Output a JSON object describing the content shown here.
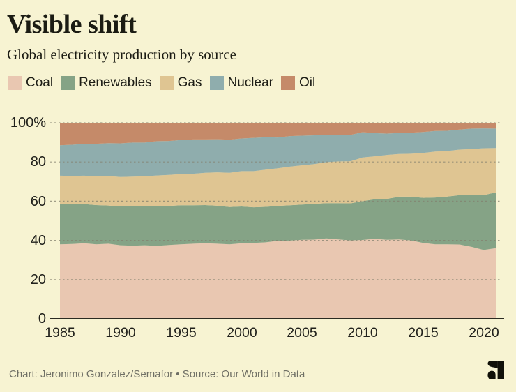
{
  "header": {
    "title": "Visible shift",
    "subtitle": "Global electricity production by source"
  },
  "footer": {
    "credit": "Chart: Jeronimo Gonzalez/Semafor • Source: Our World in Data",
    "logo_icon": "semafor-s-icon",
    "logo_color": "#111109"
  },
  "colors": {
    "background": "#f7f3d2",
    "title_text": "#1b1b13",
    "tick_text": "#21211c",
    "credit_text": "#6f6f65",
    "gridline": "#83816f",
    "axis_line": "#2b2b22"
  },
  "chart_data": {
    "type": "area",
    "stacked": true,
    "unit": "percent",
    "title": "Visible shift",
    "subtitle": "Global electricity production by source",
    "legend_position": "top",
    "grid": "dashed-horizontal",
    "ylim": [
      0,
      100
    ],
    "yticks": [
      100,
      80,
      60,
      40,
      20,
      0
    ],
    "ytick_labels": [
      "100%",
      "80",
      "60",
      "40",
      "20",
      "0"
    ],
    "xticks": [
      1985,
      1990,
      1995,
      2000,
      2005,
      2010,
      2015,
      2020
    ],
    "xtick_labels": [
      "1985",
      "1990",
      "1995",
      "2000",
      "2005",
      "2010",
      "2015",
      "2020"
    ],
    "x": [
      1985,
      1986,
      1987,
      1988,
      1989,
      1990,
      1991,
      1992,
      1993,
      1994,
      1995,
      1996,
      1997,
      1998,
      1999,
      2000,
      2001,
      2002,
      2003,
      2004,
      2005,
      2006,
      2007,
      2008,
      2009,
      2010,
      2011,
      2012,
      2013,
      2014,
      2015,
      2016,
      2017,
      2018,
      2019,
      2020,
      2021
    ],
    "series": [
      {
        "name": "Coal",
        "color": "#e9c7b1",
        "values": [
          38.0,
          38.2,
          38.5,
          38.0,
          38.3,
          37.5,
          37.3,
          37.5,
          37.2,
          37.6,
          38.0,
          38.3,
          38.5,
          38.3,
          38.0,
          38.5,
          38.7,
          39.0,
          39.8,
          39.9,
          40.3,
          40.4,
          41.0,
          40.5,
          40.0,
          40.2,
          40.8,
          40.3,
          40.5,
          40.0,
          38.7,
          38.0,
          38.0,
          37.9,
          36.7,
          35.1,
          36.0
        ]
      },
      {
        "name": "Renewables",
        "color": "#85a386",
        "values": [
          20.5,
          20.4,
          20.0,
          20.0,
          19.5,
          19.8,
          20.0,
          19.8,
          20.3,
          20.0,
          19.9,
          19.6,
          19.5,
          19.4,
          19.0,
          18.8,
          18.2,
          18.1,
          17.8,
          18.0,
          18.0,
          18.2,
          18.0,
          18.5,
          18.9,
          19.8,
          20.2,
          20.8,
          21.8,
          22.3,
          23.0,
          23.9,
          24.4,
          25.2,
          26.3,
          28.0,
          28.5
        ]
      },
      {
        "name": "Gas",
        "color": "#dfc592",
        "values": [
          14.5,
          14.3,
          14.5,
          14.6,
          15.0,
          15.0,
          15.2,
          15.4,
          15.6,
          15.8,
          15.9,
          16.1,
          16.5,
          17.0,
          17.5,
          18.0,
          18.4,
          19.0,
          19.2,
          19.7,
          20.0,
          20.3,
          20.9,
          21.3,
          21.5,
          22.3,
          21.9,
          22.5,
          21.8,
          21.9,
          22.9,
          23.4,
          23.2,
          23.2,
          23.6,
          23.9,
          22.6
        ]
      },
      {
        "name": "Nuclear",
        "color": "#8fadad",
        "values": [
          15.5,
          15.9,
          16.2,
          16.7,
          16.8,
          17.2,
          17.4,
          17.2,
          17.5,
          17.3,
          17.4,
          17.5,
          17.0,
          16.9,
          16.9,
          16.7,
          17.0,
          16.5,
          15.7,
          15.6,
          15.1,
          14.7,
          13.8,
          13.5,
          13.4,
          12.9,
          11.8,
          10.9,
          10.7,
          10.7,
          10.7,
          10.5,
          10.3,
          10.2,
          10.4,
          10.1,
          9.9
        ]
      },
      {
        "name": "Oil",
        "color": "#c58a69",
        "values": [
          11.5,
          11.2,
          10.8,
          10.7,
          10.4,
          10.5,
          10.1,
          10.1,
          9.4,
          9.3,
          8.8,
          8.5,
          8.5,
          8.4,
          8.6,
          8.0,
          7.7,
          7.4,
          7.5,
          6.8,
          6.6,
          6.4,
          6.3,
          6.2,
          6.2,
          4.8,
          5.3,
          5.5,
          5.2,
          5.1,
          4.7,
          4.2,
          4.1,
          3.5,
          3.0,
          2.9,
          3.0
        ]
      }
    ]
  }
}
